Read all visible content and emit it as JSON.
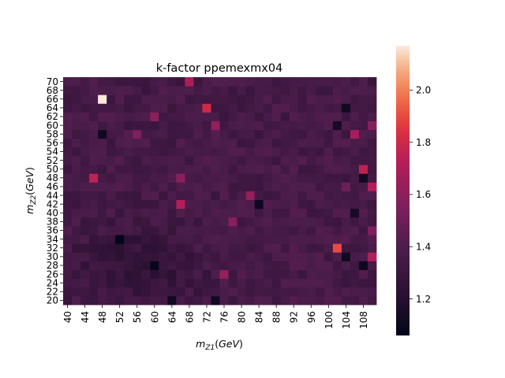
{
  "chart_data": {
    "type": "heatmap",
    "title": "k-factor ppemexmx04",
    "xlabel": "m_{Z1}(GeV)",
    "ylabel": "m_{Z2}(GeV)",
    "x_start": 40,
    "x_step": 2,
    "x_count": 36,
    "x_tick_labels": [
      "40",
      "44",
      "48",
      "52",
      "56",
      "60",
      "64",
      "68",
      "72",
      "76",
      "80",
      "84",
      "88",
      "92",
      "96",
      "100",
      "104",
      "108"
    ],
    "y_start": 20,
    "y_step": 2,
    "y_count": 26,
    "y_tick_labels": [
      "20",
      "22",
      "24",
      "26",
      "28",
      "30",
      "32",
      "34",
      "36",
      "38",
      "40",
      "42",
      "44",
      "46",
      "48",
      "50",
      "52",
      "54",
      "56",
      "58",
      "60",
      "62",
      "64",
      "66",
      "68",
      "70"
    ],
    "colorbar": {
      "min": 1.06,
      "max": 2.17,
      "ticks": [
        "1.2",
        "1.4",
        "1.6",
        "1.8",
        "2.0"
      ],
      "colormap": "rocket"
    },
    "base_value": 1.36,
    "hotspots": [
      {
        "x": 48,
        "y": 66,
        "value": 2.17
      },
      {
        "x": 102,
        "y": 32,
        "value": 1.9
      },
      {
        "x": 72,
        "y": 64,
        "value": 1.8
      },
      {
        "x": 46,
        "y": 48,
        "value": 1.75
      },
      {
        "x": 68,
        "y": 70,
        "value": 1.7
      },
      {
        "x": 66,
        "y": 42,
        "value": 1.72
      },
      {
        "x": 108,
        "y": 50,
        "value": 1.75
      },
      {
        "x": 110,
        "y": 46,
        "value": 1.72
      },
      {
        "x": 110,
        "y": 30,
        "value": 1.72
      },
      {
        "x": 106,
        "y": 58,
        "value": 1.68
      },
      {
        "x": 74,
        "y": 60,
        "value": 1.62
      },
      {
        "x": 76,
        "y": 26,
        "value": 1.62
      },
      {
        "x": 82,
        "y": 44,
        "value": 1.62
      },
      {
        "x": 66,
        "y": 48,
        "value": 1.6
      },
      {
        "x": 60,
        "y": 62,
        "value": 1.6
      },
      {
        "x": 78,
        "y": 38,
        "value": 1.58
      },
      {
        "x": 110,
        "y": 60,
        "value": 1.58
      },
      {
        "x": 110,
        "y": 36,
        "value": 1.55
      },
      {
        "x": 56,
        "y": 58,
        "value": 1.55
      },
      {
        "x": 104,
        "y": 46,
        "value": 1.5
      },
      {
        "x": 52,
        "y": 34,
        "value": 1.06
      },
      {
        "x": 60,
        "y": 28,
        "value": 1.08
      },
      {
        "x": 84,
        "y": 42,
        "value": 1.1
      },
      {
        "x": 104,
        "y": 30,
        "value": 1.12
      },
      {
        "x": 108,
        "y": 28,
        "value": 1.1
      },
      {
        "x": 108,
        "y": 48,
        "value": 1.12
      },
      {
        "x": 104,
        "y": 64,
        "value": 1.12
      },
      {
        "x": 74,
        "y": 20,
        "value": 1.12
      },
      {
        "x": 64,
        "y": 20,
        "value": 1.12
      },
      {
        "x": 48,
        "y": 58,
        "value": 1.12
      },
      {
        "x": 102,
        "y": 60,
        "value": 1.14
      },
      {
        "x": 106,
        "y": 40,
        "value": 1.14
      }
    ]
  }
}
